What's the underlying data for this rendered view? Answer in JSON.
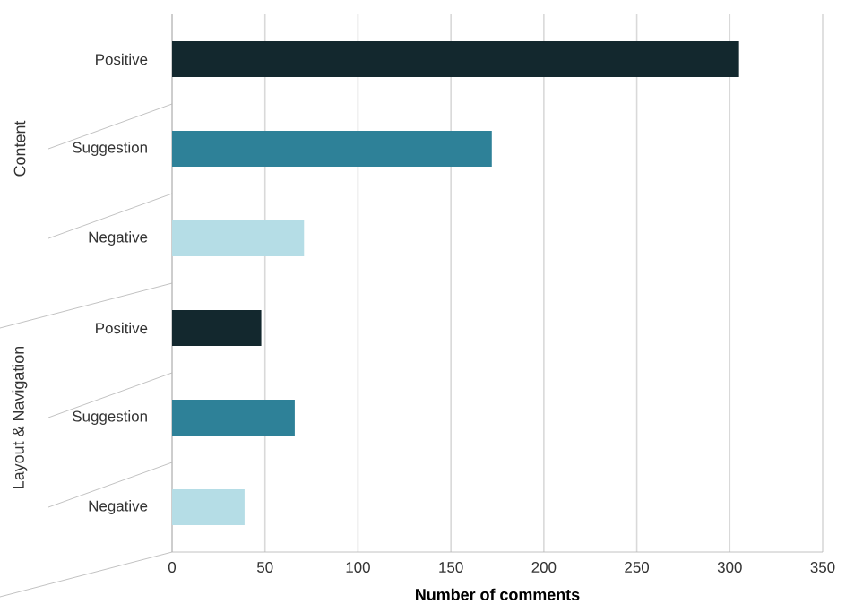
{
  "chart_data": {
    "type": "bar",
    "orientation": "horizontal",
    "xlabel": "Number of comments",
    "categories": [
      "Positive",
      "Suggestion",
      "Negative",
      "Positive",
      "Suggestion",
      "Negative"
    ],
    "values": [
      305,
      172,
      71,
      48,
      66,
      39
    ],
    "colors": [
      "#13282e",
      "#2e8198",
      "#b5dde6",
      "#13282e",
      "#2e8198",
      "#b5dde6"
    ],
    "xlim": [
      0,
      350
    ],
    "xticks": [
      0,
      50,
      100,
      150,
      200,
      250,
      300,
      350
    ],
    "grid": "x",
    "annotations": [
      "Content",
      "Layout & Navigation"
    ]
  }
}
